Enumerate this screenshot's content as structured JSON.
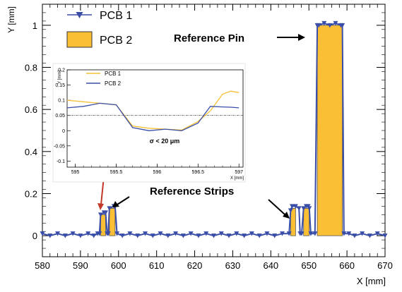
{
  "chart_data": [
    {
      "type": "line",
      "xlabel": "X [mm]",
      "ylabel": "Y [mm]",
      "xlim": [
        580,
        670
      ],
      "ylim": [
        -0.1,
        1.1
      ],
      "x_ticks": [
        "580",
        "590",
        "600",
        "610",
        "620",
        "630",
        "640",
        "650",
        "660",
        "670"
      ],
      "y_ticks": [
        "0",
        "0.2",
        "0.4",
        "0.6",
        "0.8",
        "1"
      ],
      "legend_position": "top-left",
      "series": [
        {
          "name": "PCB 1",
          "style": "line with triangle markers",
          "color": "#3a4ea8",
          "x": [
            580,
            582,
            584,
            586,
            588,
            590,
            592,
            593.5,
            594.5,
            595.0,
            595.3,
            596.2,
            596.6,
            597.0,
            597.3,
            597.6,
            598.8,
            599.1,
            599.6,
            601,
            603,
            605,
            607,
            609,
            611,
            613,
            615,
            617,
            619,
            621,
            623,
            625,
            627,
            629,
            631,
            633,
            635,
            637,
            639,
            641,
            643,
            644.8,
            645.2,
            645.6,
            646.5,
            647.4,
            647.7,
            648.1,
            648.6,
            649.3,
            649.8,
            650.1,
            650.5,
            651.6,
            652.2,
            652.6,
            654,
            655.5,
            657,
            658.4,
            658.8,
            659.2,
            660.5,
            662,
            664,
            666,
            668,
            670
          ],
          "y": [
            0.01,
            0.0,
            0.01,
            0.0,
            0.01,
            0.0,
            0.01,
            0.0,
            0.01,
            0.01,
            0.1,
            0.11,
            0.11,
            0.01,
            0.01,
            0.13,
            0.14,
            0.14,
            0.01,
            0.0,
            0.01,
            0.0,
            0.01,
            0.0,
            0.01,
            0.0,
            0.01,
            0.0,
            0.01,
            0.0,
            0.01,
            0.0,
            0.01,
            0.0,
            0.01,
            0.0,
            0.01,
            0.0,
            0.01,
            0.0,
            0.01,
            0.01,
            0.12,
            0.14,
            0.14,
            0.13,
            0.01,
            0.01,
            0.13,
            0.14,
            0.14,
            0.13,
            0.01,
            0.01,
            1.0,
            1.0,
            1.01,
            1.0,
            1.01,
            1.0,
            1.0,
            0.01,
            0.01,
            0.0,
            0.01,
            0.0,
            0.01,
            0.0
          ]
        },
        {
          "name": "PCB 2",
          "style": "filled area",
          "color": "#fbbf35",
          "bars": [
            {
              "x0": 595.3,
              "x1": 596.6,
              "y": 0.1
            },
            {
              "x0": 597.6,
              "x1": 599.1,
              "y": 0.13
            },
            {
              "x0": 645.2,
              "x1": 646.5,
              "y": 0.13
            },
            {
              "x0": 648.6,
              "x1": 650.1,
              "y": 0.13
            },
            {
              "x0": 652.2,
              "x1": 658.8,
              "y": 1.0
            }
          ]
        }
      ],
      "annotations": [
        "Reference Pin",
        "Reference Strips"
      ]
    },
    {
      "type": "line",
      "role": "inset",
      "xlabel": "X [mm]",
      "ylabel": "Y [mm]",
      "xlim": [
        594.9,
        597.05
      ],
      "ylim": [
        -0.12,
        0.2
      ],
      "x_ticks": [
        "595",
        "595.5",
        "596",
        "596.5",
        "597"
      ],
      "y_ticks": [
        "-0.1",
        "-0.05",
        "0",
        "0.05",
        "0.1",
        "0.15",
        "0.2"
      ],
      "reference_level": 0.05,
      "annotation": "σ < 20 μm",
      "legend_position": "top-left",
      "series": [
        {
          "name": "PCB 1",
          "color": "#f6c035",
          "x": [
            594.9,
            595.1,
            595.3,
            595.5,
            595.7,
            595.9,
            596.1,
            596.3,
            596.5,
            596.65,
            596.8,
            596.9,
            597.0
          ],
          "y": [
            0.1,
            0.095,
            0.09,
            0.085,
            0.015,
            0.008,
            0.005,
            0.002,
            0.03,
            0.065,
            0.12,
            0.13,
            0.125
          ]
        },
        {
          "name": "PCB 2",
          "color": "#3a4ea8",
          "x": [
            594.9,
            595.1,
            595.3,
            595.5,
            595.7,
            595.9,
            596.1,
            596.3,
            596.5,
            596.65,
            596.8,
            596.9,
            597.0
          ],
          "y": [
            0.075,
            0.08,
            0.09,
            0.085,
            0.01,
            0.0,
            0.005,
            0.0,
            0.025,
            0.08,
            0.078,
            0.077,
            0.075
          ]
        }
      ]
    }
  ]
}
